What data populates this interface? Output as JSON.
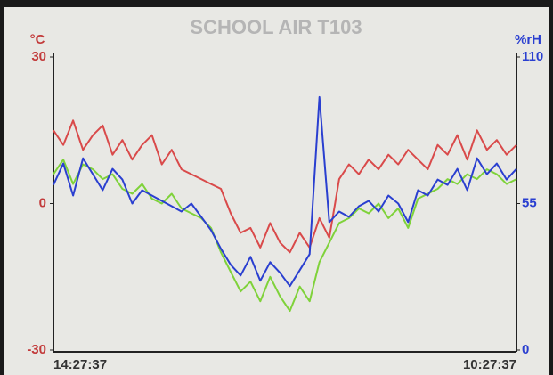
{
  "chart_data": {
    "type": "line",
    "title": "SCHOOL AIR T103",
    "ylabel": "°C",
    "y2label": "%rH",
    "categories": [
      "14:27:37",
      null,
      null,
      null,
      null,
      null,
      null,
      null,
      null,
      null,
      null,
      null,
      null,
      null,
      null,
      null,
      null,
      null,
      null,
      null,
      null,
      null,
      null,
      null,
      null,
      null,
      null,
      null,
      null,
      null,
      null,
      null,
      null,
      null,
      null,
      null,
      null,
      null,
      null,
      null,
      null,
      null,
      null,
      null,
      null,
      null,
      null,
      "10:27:37"
    ],
    "ylim": [
      -30,
      30
    ],
    "yticks": [
      -30,
      0,
      30
    ],
    "y2lim": [
      0,
      110
    ],
    "y2ticks": [
      0,
      55,
      110
    ],
    "grid": false,
    "series": [
      {
        "color": "#d94a4a",
        "values": [
          15,
          12,
          17,
          11,
          14,
          16,
          10,
          13,
          9,
          12,
          14,
          8,
          11,
          7,
          6,
          5,
          4,
          3,
          -2,
          -6,
          -5,
          -9,
          -4,
          -8,
          -10,
          -6,
          -9,
          -3,
          -7,
          5,
          8,
          6,
          9,
          7,
          10,
          8,
          11,
          9,
          7,
          12,
          10,
          14,
          9,
          15,
          11,
          13,
          10,
          12
        ]
      },
      {
        "color": "#7fd23a",
        "values": [
          6,
          9,
          4,
          8,
          7,
          5,
          6,
          3,
          2,
          4,
          1,
          0,
          2,
          -1,
          -2,
          -3,
          -5,
          -10,
          -14,
          -18,
          -16,
          -20,
          -15,
          -19,
          -22,
          -17,
          -20,
          -12,
          -8,
          -4,
          -3,
          -1,
          -2,
          0,
          -3,
          -1,
          -5,
          1,
          2,
          3,
          5,
          4,
          6,
          5,
          7,
          6,
          4,
          5
        ]
      },
      {
        "color": "#2a3fd0",
        "axis": "y2",
        "values": [
          62,
          70,
          58,
          72,
          66,
          60,
          68,
          64,
          55,
          60,
          58,
          56,
          54,
          52,
          55,
          50,
          45,
          38,
          32,
          28,
          35,
          26,
          33,
          29,
          24,
          30,
          36,
          95,
          48,
          52,
          50,
          54,
          56,
          52,
          58,
          55,
          48,
          60,
          58,
          64,
          62,
          68,
          60,
          72,
          66,
          70,
          64,
          68
        ]
      }
    ]
  }
}
